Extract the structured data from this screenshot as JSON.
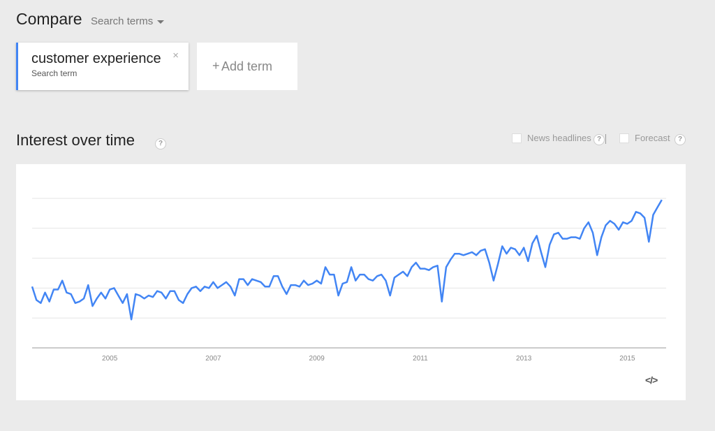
{
  "header": {
    "title": "Compare",
    "dropdown_label": "Search terms"
  },
  "terms": [
    {
      "name": "customer experience",
      "sub": "Search term",
      "close": "×",
      "accent": "#4285f4"
    }
  ],
  "add_term": {
    "plus": "+",
    "label": "Add term"
  },
  "section": {
    "title": "Interest over time",
    "help": "?",
    "news_label": "News headlines",
    "forecast_label": "Forecast"
  },
  "chart_data": {
    "type": "line",
    "title": "",
    "xlabel": "",
    "ylabel": "",
    "x_ticks": [
      "2005",
      "2007",
      "2009",
      "2011",
      "2013",
      "2015"
    ],
    "y_gridlines": 5,
    "ylim": [
      0,
      100
    ],
    "xlim": [
      2004.0,
      2016.25
    ],
    "series": [
      {
        "color": "#4285f4",
        "x_start": 2004.0,
        "x_step": 0.0833333,
        "values": [
          41,
          32,
          30,
          37,
          31,
          39,
          39,
          45,
          37,
          36,
          30,
          31,
          33,
          42,
          28,
          33,
          37,
          33,
          39,
          40,
          35,
          30,
          36,
          19,
          36,
          35,
          33,
          35,
          34,
          38,
          37,
          33,
          38,
          38,
          32,
          30,
          36,
          40,
          41,
          38,
          41,
          40,
          44,
          40,
          42,
          44,
          41,
          35,
          46,
          46,
          42,
          46,
          45,
          44,
          41,
          41,
          48,
          48,
          41,
          36,
          42,
          42,
          41,
          45,
          42,
          43,
          45,
          43,
          54,
          49,
          49,
          35,
          43,
          44,
          54,
          45,
          49,
          49,
          46,
          45,
          48,
          49,
          45,
          35,
          47,
          49,
          51,
          48,
          54,
          57,
          53,
          53,
          52,
          54,
          55,
          31,
          54,
          59,
          63,
          63,
          62,
          63,
          64,
          62,
          65,
          66,
          57,
          45,
          56,
          68,
          63,
          67,
          66,
          62,
          67,
          58,
          70,
          75,
          64,
          54,
          69,
          76,
          77,
          73,
          73,
          74,
          74,
          73,
          80,
          84,
          77,
          62,
          74,
          82,
          85,
          83,
          79,
          84,
          83,
          85,
          91,
          90,
          87,
          71,
          89,
          94,
          99
        ]
      }
    ]
  }
}
